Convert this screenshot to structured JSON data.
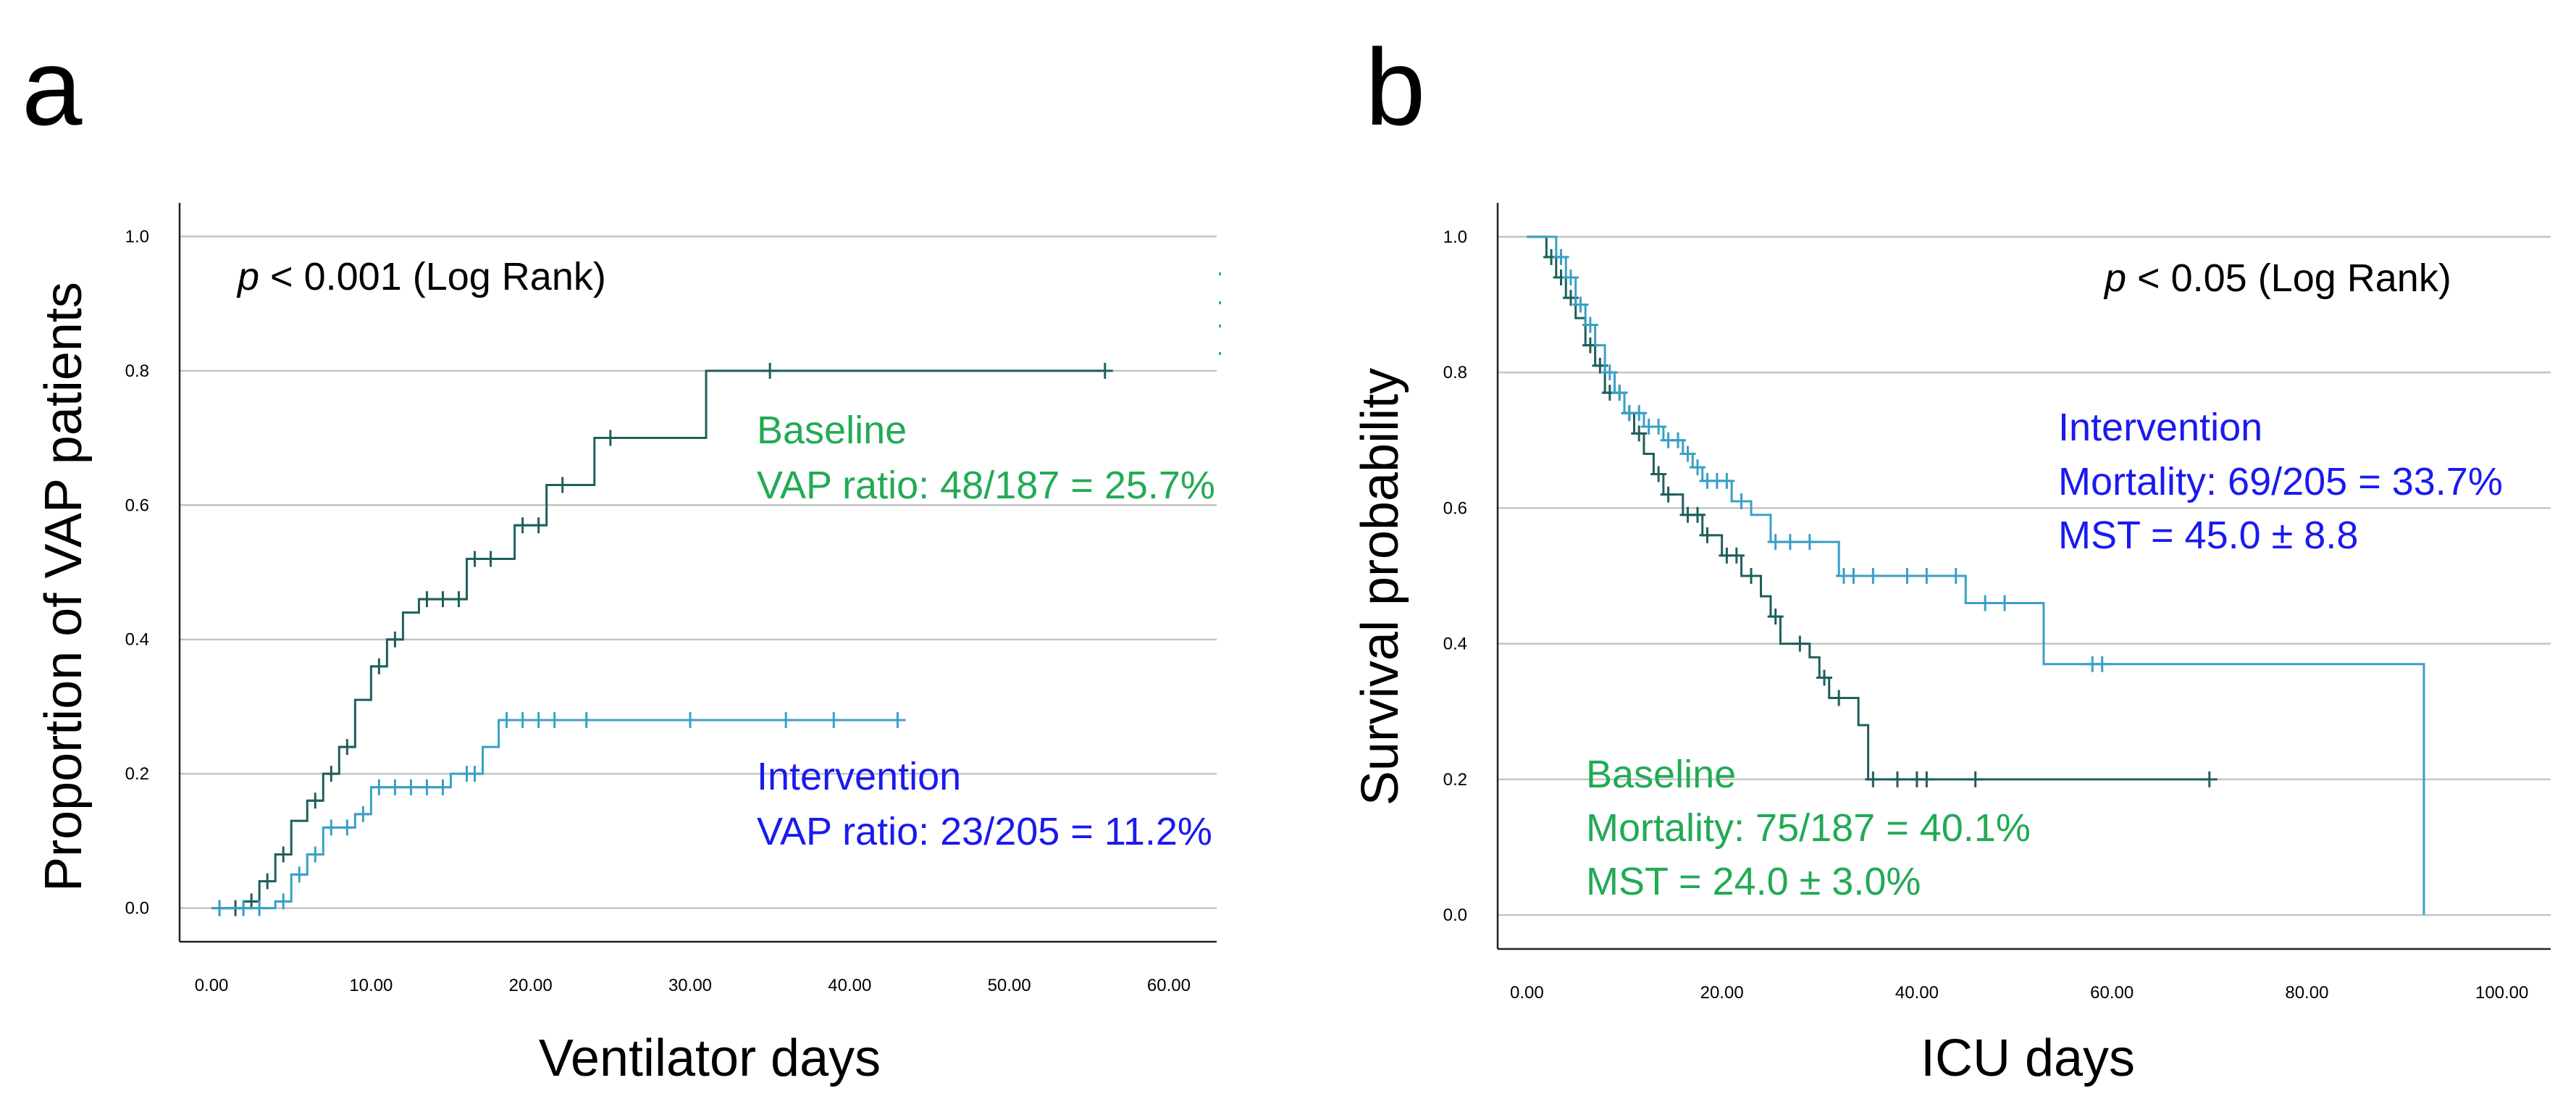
{
  "panels": [
    {
      "letter": "a"
    },
    {
      "letter": "b"
    }
  ],
  "chart_data": [
    {
      "type": "line",
      "subtype": "kaplan-meier-cumulative",
      "panel": "a",
      "xlabel": "Ventilator days",
      "ylabel": "Proportion of VAP patients",
      "xlim": [
        -2,
        63
      ],
      "ylim": [
        -0.05,
        1.05
      ],
      "xticks": [
        0,
        10,
        20,
        30,
        40,
        50,
        60
      ],
      "xtick_labels": [
        "0.00",
        "10.00",
        "20.00",
        "30.00",
        "40.00",
        "50.00",
        "60.00"
      ],
      "yticks": [
        0,
        0.2,
        0.4,
        0.6,
        0.8,
        1.0
      ],
      "ytick_labels": [
        "0.0",
        "0.2",
        "0.4",
        "0.6",
        "0.8",
        "1.0"
      ],
      "grid": "horizontal",
      "annotation": {
        "italic": "p",
        "rest": " < 0.001 (Log Rank)"
      },
      "legend_texts": [
        {
          "series": "Baseline",
          "lines": [
            "Baseline",
            "VAP ratio: 48/187 = 25.7%"
          ]
        },
        {
          "series": "Intervention",
          "lines": [
            "Intervention",
            "VAP ratio: 23/205 = 11.2%"
          ]
        }
      ],
      "series": [
        {
          "name": "Baseline",
          "color": "#1f5f5b",
          "steps": [
            [
              0.5,
              0
            ],
            [
              2,
              0.01
            ],
            [
              3,
              0.04
            ],
            [
              4,
              0.08
            ],
            [
              5,
              0.13
            ],
            [
              6,
              0.16
            ],
            [
              7,
              0.2
            ],
            [
              8,
              0.24
            ],
            [
              9,
              0.31
            ],
            [
              10,
              0.36
            ],
            [
              11,
              0.4
            ],
            [
              12,
              0.44
            ],
            [
              13,
              0.46
            ],
            [
              16,
              0.52
            ],
            [
              19,
              0.57
            ],
            [
              21,
              0.63
            ],
            [
              24,
              0.7
            ],
            [
              31,
              0.8
            ],
            [
              56,
              0.8
            ]
          ],
          "censors": [
            [
              0.5,
              0
            ],
            [
              1.5,
              0
            ],
            [
              2.5,
              0.01
            ],
            [
              3.5,
              0.04
            ],
            [
              4.5,
              0.08
            ],
            [
              6.5,
              0.16
            ],
            [
              7.5,
              0.2
            ],
            [
              8.5,
              0.24
            ],
            [
              10.5,
              0.36
            ],
            [
              11.5,
              0.4
            ],
            [
              13.5,
              0.46
            ],
            [
              14.5,
              0.46
            ],
            [
              15.5,
              0.46
            ],
            [
              16.5,
              0.52
            ],
            [
              17.5,
              0.52
            ],
            [
              19.5,
              0.57
            ],
            [
              20.5,
              0.57
            ],
            [
              22,
              0.63
            ],
            [
              25,
              0.7
            ],
            [
              35,
              0.8
            ],
            [
              56,
              0.8
            ]
          ]
        },
        {
          "name": "Intervention",
          "color": "#3a9fc6",
          "steps": [
            [
              0.5,
              0
            ],
            [
              4,
              0.01
            ],
            [
              5,
              0.05
            ],
            [
              6,
              0.08
            ],
            [
              7,
              0.12
            ],
            [
              9,
              0.14
            ],
            [
              10,
              0.18
            ],
            [
              15,
              0.2
            ],
            [
              17,
              0.24
            ],
            [
              18,
              0.28
            ],
            [
              43,
              0.28
            ]
          ],
          "censors": [
            [
              0.5,
              0
            ],
            [
              2,
              0
            ],
            [
              3,
              0
            ],
            [
              4.5,
              0.01
            ],
            [
              5.5,
              0.05
            ],
            [
              6.5,
              0.08
            ],
            [
              7.5,
              0.12
            ],
            [
              8.5,
              0.12
            ],
            [
              9.5,
              0.14
            ],
            [
              10.5,
              0.18
            ],
            [
              11.5,
              0.18
            ],
            [
              12.5,
              0.18
            ],
            [
              13.5,
              0.18
            ],
            [
              14.5,
              0.18
            ],
            [
              16,
              0.2
            ],
            [
              16.5,
              0.2
            ],
            [
              18.5,
              0.28
            ],
            [
              19.5,
              0.28
            ],
            [
              20.5,
              0.28
            ],
            [
              21.5,
              0.28
            ],
            [
              23.5,
              0.28
            ],
            [
              30,
              0.28
            ],
            [
              36,
              0.28
            ],
            [
              39,
              0.28
            ],
            [
              43,
              0.28
            ]
          ]
        }
      ]
    },
    {
      "type": "line",
      "subtype": "kaplan-meier-survival",
      "panel": "b",
      "xlabel": "ICU days",
      "ylabel": "Survival probability",
      "xlim": [
        -3,
        105
      ],
      "ylim": [
        -0.05,
        1.05
      ],
      "xticks": [
        0,
        20,
        40,
        60,
        80,
        100
      ],
      "xtick_labels": [
        "0.00",
        "20.00",
        "40.00",
        "60.00",
        "80.00",
        "100.00"
      ],
      "yticks": [
        0,
        0.2,
        0.4,
        0.6,
        0.8,
        1.0
      ],
      "ytick_labels": [
        "0.0",
        "0.2",
        "0.4",
        "0.6",
        "0.8",
        "1.0"
      ],
      "grid": "horizontal",
      "annotation": {
        "italic": "p",
        "rest": " < 0.05 (Log Rank)"
      },
      "legend_texts": [
        {
          "series": "Intervention",
          "lines": [
            "Intervention",
            "Mortality: 69/205 = 33.7%",
            "MST = 45.0 ± 8.8"
          ]
        },
        {
          "series": "Baseline",
          "lines": [
            "Baseline",
            "Mortality: 75/187 = 40.1%",
            "MST = 24.0 ± 3.0%"
          ]
        }
      ],
      "series": [
        {
          "name": "Baseline",
          "color": "#1f5f5b",
          "steps": [
            [
              0,
              1.0
            ],
            [
              2,
              0.97
            ],
            [
              3,
              0.94
            ],
            [
              4,
              0.91
            ],
            [
              5,
              0.88
            ],
            [
              6,
              0.84
            ],
            [
              7,
              0.81
            ],
            [
              8,
              0.77
            ],
            [
              10,
              0.74
            ],
            [
              11,
              0.71
            ],
            [
              12,
              0.68
            ],
            [
              13,
              0.65
            ],
            [
              14,
              0.62
            ],
            [
              16,
              0.59
            ],
            [
              18,
              0.56
            ],
            [
              20,
              0.53
            ],
            [
              22,
              0.5
            ],
            [
              24,
              0.47
            ],
            [
              25,
              0.44
            ],
            [
              26,
              0.4
            ],
            [
              29,
              0.38
            ],
            [
              30,
              0.35
            ],
            [
              31,
              0.32
            ],
            [
              34,
              0.28
            ],
            [
              35,
              0.2
            ],
            [
              70,
              0.2
            ]
          ],
          "censors": [
            [
              2.5,
              0.97
            ],
            [
              3.5,
              0.94
            ],
            [
              4.5,
              0.91
            ],
            [
              6.5,
              0.84
            ],
            [
              7.5,
              0.81
            ],
            [
              8.5,
              0.77
            ],
            [
              9.5,
              0.77
            ],
            [
              10.5,
              0.74
            ],
            [
              11.5,
              0.71
            ],
            [
              13.5,
              0.65
            ],
            [
              14.5,
              0.62
            ],
            [
              16.5,
              0.59
            ],
            [
              17.5,
              0.59
            ],
            [
              18.5,
              0.56
            ],
            [
              20.5,
              0.53
            ],
            [
              21.5,
              0.53
            ],
            [
              23,
              0.5
            ],
            [
              25.5,
              0.44
            ],
            [
              28,
              0.4
            ],
            [
              30.5,
              0.35
            ],
            [
              32,
              0.32
            ],
            [
              35.5,
              0.2
            ],
            [
              38,
              0.2
            ],
            [
              40,
              0.2
            ],
            [
              41,
              0.2
            ],
            [
              46,
              0.2
            ],
            [
              70,
              0.2
            ]
          ]
        },
        {
          "name": "Intervention",
          "color": "#3a9fc6",
          "steps": [
            [
              0,
              1.0
            ],
            [
              3,
              0.97
            ],
            [
              4,
              0.94
            ],
            [
              5,
              0.9
            ],
            [
              6,
              0.87
            ],
            [
              7,
              0.84
            ],
            [
              8,
              0.8
            ],
            [
              9,
              0.77
            ],
            [
              10,
              0.74
            ],
            [
              12,
              0.72
            ],
            [
              14,
              0.7
            ],
            [
              16,
              0.68
            ],
            [
              17,
              0.66
            ],
            [
              18,
              0.64
            ],
            [
              21,
              0.61
            ],
            [
              23,
              0.59
            ],
            [
              25,
              0.55
            ],
            [
              32,
              0.5
            ],
            [
              45,
              0.46
            ],
            [
              53,
              0.37
            ],
            [
              92,
              0.37
            ],
            [
              92,
              0
            ]
          ],
          "censors": [
            [
              3.5,
              0.97
            ],
            [
              4.5,
              0.94
            ],
            [
              5.5,
              0.9
            ],
            [
              6.5,
              0.87
            ],
            [
              8.5,
              0.8
            ],
            [
              9.5,
              0.77
            ],
            [
              10.5,
              0.74
            ],
            [
              11.5,
              0.74
            ],
            [
              12.5,
              0.72
            ],
            [
              13.5,
              0.72
            ],
            [
              14.5,
              0.7
            ],
            [
              15.5,
              0.7
            ],
            [
              16.5,
              0.68
            ],
            [
              17.5,
              0.66
            ],
            [
              18.5,
              0.64
            ],
            [
              19.5,
              0.64
            ],
            [
              20.5,
              0.64
            ],
            [
              22,
              0.61
            ],
            [
              25.5,
              0.55
            ],
            [
              27,
              0.55
            ],
            [
              29,
              0.55
            ],
            [
              32.5,
              0.5
            ],
            [
              33.5,
              0.5
            ],
            [
              35.5,
              0.5
            ],
            [
              39,
              0.5
            ],
            [
              41,
              0.5
            ],
            [
              44,
              0.5
            ],
            [
              47,
              0.46
            ],
            [
              49,
              0.46
            ],
            [
              58,
              0.37
            ],
            [
              59,
              0.37
            ]
          ]
        }
      ]
    }
  ]
}
